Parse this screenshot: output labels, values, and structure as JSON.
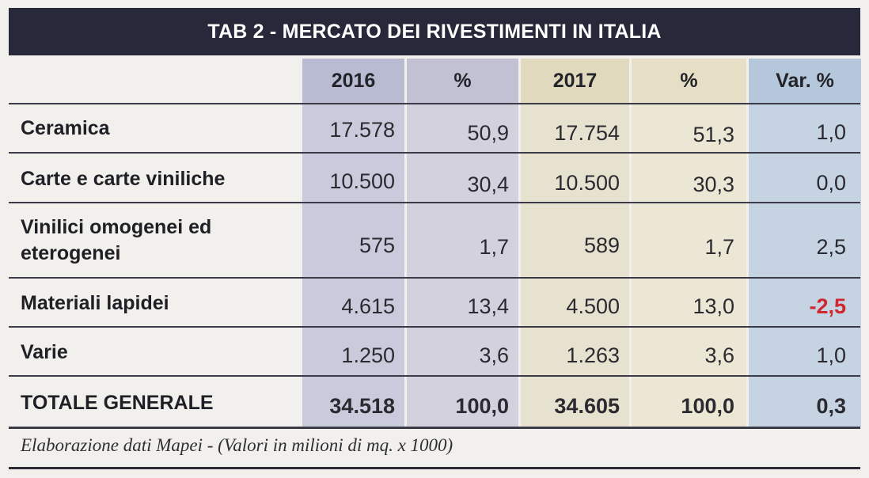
{
  "title": "TAB 2 - MERCATO DEI RIVESTIMENTI IN ITALIA",
  "columns": [
    "2016",
    "%",
    "2017",
    "%",
    "Var. %"
  ],
  "rows": [
    {
      "label": "Ceramica",
      "v2016": "17.578",
      "p2016": "50,9",
      "v2017": "17.754",
      "p2017": "51,3",
      "var": "1,0"
    },
    {
      "label": "Carte e carte viniliche",
      "v2016": "10.500",
      "p2016": "30,4",
      "v2017": "10.500",
      "p2017": "30,3",
      "var": "0,0"
    },
    {
      "label_line1": "Vinilici omogenei ed",
      "label_line2": "eterogenei",
      "v2016": "575",
      "p2016": "1,7",
      "v2017": "589",
      "p2017": "1,7",
      "var": "2,5"
    },
    {
      "label": "Materiali lapidei",
      "v2016": "4.615",
      "p2016": "13,4",
      "v2017": "4.500",
      "p2017": "13,0",
      "var": "-2,5"
    },
    {
      "label": "Varie",
      "v2016": "1.250",
      "p2016": "3,6",
      "v2017": "1.263",
      "p2017": "3,6",
      "var": "1,0"
    },
    {
      "label": "TOTALE GENERALE",
      "v2016": "34.518",
      "p2016": "100,0",
      "v2017": "34.605",
      "p2017": "100,0",
      "var": "0,3"
    }
  ],
  "footnote": "Elaborazione dati Mapei  - (Valori in milioni di mq. x 1000)",
  "colors": {
    "title_bg": "#27293a",
    "negative": "#d0262e",
    "col_2016": "#c9cbdc",
    "col_2017": "#e6e2cf",
    "col_var": "#c5d3e2"
  }
}
